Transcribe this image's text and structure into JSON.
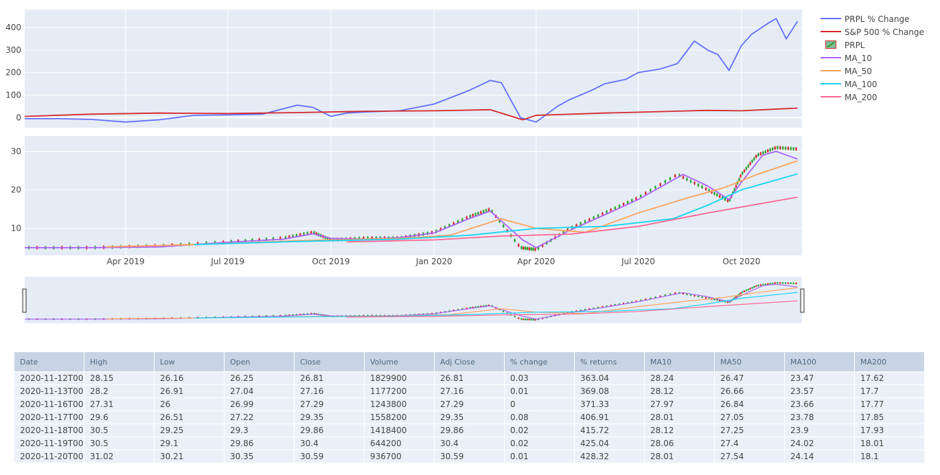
{
  "chart_data": [
    {
      "type": "line",
      "panel": "percent-change",
      "y_ticks": [
        0,
        100,
        200,
        300,
        400
      ],
      "ylim": [
        -45,
        480
      ],
      "grid": true,
      "series": [
        {
          "name": "PRPL % Change",
          "color": "#636efa",
          "x": [
            "2019-01-01",
            "2019-02-01",
            "2019-03-01",
            "2019-04-01",
            "2019-05-01",
            "2019-06-01",
            "2019-07-01",
            "2019-08-01",
            "2019-08-20",
            "2019-09-01",
            "2019-09-15",
            "2019-10-01",
            "2019-10-15",
            "2019-11-01",
            "2019-12-01",
            "2020-01-01",
            "2020-02-01",
            "2020-02-20",
            "2020-03-01",
            "2020-03-18",
            "2020-04-01",
            "2020-04-20",
            "2020-05-01",
            "2020-05-20",
            "2020-06-01",
            "2020-06-20",
            "2020-07-01",
            "2020-07-20",
            "2020-08-05",
            "2020-08-20",
            "2020-09-01",
            "2020-09-10",
            "2020-09-20",
            "2020-10-01",
            "2020-10-10",
            "2020-10-25",
            "2020-11-01",
            "2020-11-10",
            "2020-11-20"
          ],
          "y": [
            -5,
            -5,
            -8,
            -20,
            -10,
            10,
            12,
            15,
            40,
            55,
            45,
            5,
            20,
            25,
            30,
            60,
            120,
            165,
            155,
            0,
            -20,
            50,
            80,
            120,
            150,
            170,
            200,
            215,
            240,
            340,
            300,
            280,
            210,
            320,
            370,
            420,
            440,
            350,
            428
          ]
        },
        {
          "name": "S&P 500 % Change",
          "color": "#d62728",
          "x": [
            "2019-01-01",
            "2019-03-01",
            "2019-05-01",
            "2019-07-01",
            "2019-09-01",
            "2019-11-01",
            "2020-01-01",
            "2020-02-20",
            "2020-03-20",
            "2020-04-01",
            "2020-06-01",
            "2020-08-01",
            "2020-09-01",
            "2020-10-01",
            "2020-11-20"
          ],
          "y": [
            5,
            15,
            20,
            18,
            22,
            28,
            30,
            35,
            -10,
            10,
            20,
            28,
            32,
            30,
            42
          ]
        }
      ]
    },
    {
      "type": "candlestick",
      "panel": "price",
      "y_ticks": [
        10,
        20,
        30
      ],
      "ylim": [
        3,
        34
      ],
      "x_ticks": [
        "Apr 2019",
        "Jul 2019",
        "Oct 2019",
        "Jan 2020",
        "Apr 2020",
        "Jul 2020",
        "Oct 2020"
      ],
      "grid": true,
      "candles": {
        "name": "PRPL",
        "increasing_color": "#2ca02c",
        "decreasing_color": "#d62728",
        "x": [
          "2019-01-01",
          "2019-03-01",
          "2019-05-01",
          "2019-07-01",
          "2019-08-20",
          "2019-09-15",
          "2019-10-01",
          "2019-11-01",
          "2019-12-01",
          "2020-01-01",
          "2020-02-01",
          "2020-02-20",
          "2020-03-18",
          "2020-04-01",
          "2020-05-01",
          "2020-06-01",
          "2020-07-01",
          "2020-08-05",
          "2020-09-01",
          "2020-09-20",
          "2020-10-01",
          "2020-10-15",
          "2020-11-01",
          "2020-11-20"
        ],
        "close": [
          5,
          5,
          5.5,
          6.5,
          7.5,
          9,
          7,
          7.5,
          7.5,
          9,
          13,
          15,
          5,
          4.5,
          10,
          14,
          18,
          24,
          20,
          17,
          24,
          29,
          31,
          30.59
        ]
      },
      "series": [
        {
          "name": "MA_10",
          "color": "#ab63fa",
          "x": [
            "2019-01-01",
            "2019-03-01",
            "2019-05-01",
            "2019-07-01",
            "2019-08-20",
            "2019-09-15",
            "2019-10-01",
            "2019-11-01",
            "2019-12-01",
            "2020-01-01",
            "2020-02-01",
            "2020-02-20",
            "2020-03-20",
            "2020-04-01",
            "2020-05-01",
            "2020-06-01",
            "2020-07-01",
            "2020-08-10",
            "2020-09-01",
            "2020-09-20",
            "2020-10-01",
            "2020-10-20",
            "2020-11-01",
            "2020-11-20"
          ],
          "y": [
            5,
            5,
            5.2,
            6.4,
            7.2,
            8.6,
            7.4,
            7.2,
            7.6,
            8.8,
            12.5,
            14.5,
            7,
            5,
            9.5,
            13.5,
            17.5,
            24,
            21,
            17.5,
            22,
            29,
            30,
            28
          ]
        },
        {
          "name": "MA_50",
          "color": "#ffa15a",
          "x": [
            "2019-03-15",
            "2019-06-01",
            "2019-09-01",
            "2019-12-01",
            "2020-01-15",
            "2020-03-01",
            "2020-04-01",
            "2020-05-15",
            "2020-07-01",
            "2020-08-15",
            "2020-09-15",
            "2020-10-15",
            "2020-11-20"
          ],
          "y": [
            5.2,
            5.8,
            6.8,
            7.4,
            8.2,
            12.5,
            10,
            9,
            14,
            18,
            20.5,
            24,
            27.54
          ]
        },
        {
          "name": "MA_100",
          "color": "#19d3f3",
          "x": [
            "2019-06-01",
            "2019-09-01",
            "2019-12-01",
            "2020-02-01",
            "2020-04-01",
            "2020-06-01",
            "2020-08-01",
            "2020-09-01",
            "2020-10-01",
            "2020-11-20"
          ],
          "y": [
            5.8,
            6.6,
            7.2,
            8.2,
            10,
            10.5,
            12.5,
            16,
            20,
            24.14
          ]
        },
        {
          "name": "MA_200",
          "color": "#ff6692",
          "x": [
            "2019-10-15",
            "2020-01-01",
            "2020-03-01",
            "2020-05-01",
            "2020-07-01",
            "2020-09-01",
            "2020-11-20"
          ],
          "y": [
            6.5,
            7,
            8,
            8.5,
            10.5,
            14,
            18.1
          ]
        }
      ]
    },
    {
      "type": "table",
      "columns": [
        "Date",
        "High",
        "Low",
        "Open",
        "Close",
        "Volume",
        "Adj Close",
        "% change",
        "% returns",
        "MA10",
        "MA50",
        "MA100",
        "MA200"
      ],
      "rows": [
        [
          "2020-11-12T00",
          "28.15",
          "26.16",
          "26.25",
          "26.81",
          "1829900",
          "26.81",
          "0.03",
          "363.04",
          "28.24",
          "26.47",
          "23.47",
          "17.62"
        ],
        [
          "2020-11-13T00",
          "28.2",
          "26.91",
          "27.04",
          "27.16",
          "1177200",
          "27.16",
          "0.01",
          "369.08",
          "28.12",
          "26.66",
          "23.57",
          "17.7"
        ],
        [
          "2020-11-16T00",
          "27.31",
          "26",
          "26.99",
          "27.29",
          "1243800",
          "27.29",
          "0",
          "371.33",
          "27.97",
          "26.84",
          "23.66",
          "17.77"
        ],
        [
          "2020-11-17T00",
          "29.6",
          "26.51",
          "27.22",
          "29.35",
          "1558200",
          "29.35",
          "0.08",
          "406.91",
          "28.01",
          "27.05",
          "23.78",
          "17.85"
        ],
        [
          "2020-11-18T00",
          "30.5",
          "29.25",
          "29.3",
          "29.86",
          "1418400",
          "29.86",
          "0.02",
          "415.72",
          "28.12",
          "27.25",
          "23.9",
          "17.93"
        ],
        [
          "2020-11-19T00",
          "30.5",
          "29.1",
          "29.86",
          "30.4",
          "644200",
          "30.4",
          "0.02",
          "425.04",
          "28.06",
          "27.4",
          "24.02",
          "18.01"
        ],
        [
          "2020-11-20T00",
          "31.02",
          "30.21",
          "30.35",
          "30.59",
          "936700",
          "30.59",
          "0.01",
          "428.32",
          "28.01",
          "27.54",
          "24.14",
          "18.1"
        ]
      ]
    }
  ],
  "legend": {
    "placement": "right",
    "items": [
      {
        "label": "PRPL % Change",
        "color": "#636efa",
        "kind": "line"
      },
      {
        "label": "S&P 500 % Change",
        "color": "#d62728",
        "kind": "line"
      },
      {
        "label": "PRPL",
        "color": "#2ca02c",
        "kind": "candle"
      },
      {
        "label": "MA_10",
        "color": "#ab63fa",
        "kind": "line"
      },
      {
        "label": "MA_50",
        "color": "#ffa15a",
        "kind": "line"
      },
      {
        "label": "MA_100",
        "color": "#19d3f3",
        "kind": "line"
      },
      {
        "label": "MA_200",
        "color": "#ff6692",
        "kind": "line"
      }
    ]
  },
  "x_range": [
    "2019-01-01",
    "2020-11-24"
  ]
}
